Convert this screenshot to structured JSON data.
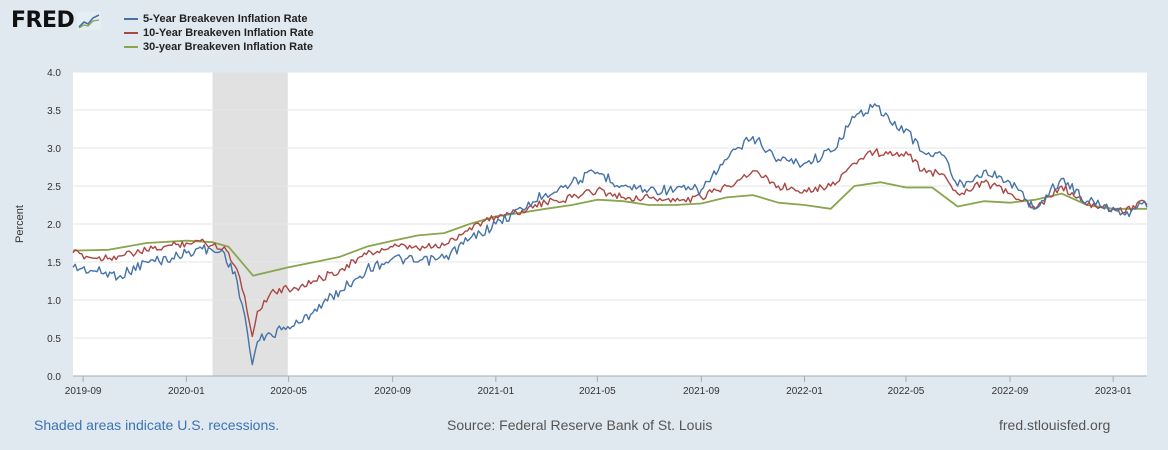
{
  "header": {
    "logo_text": "FRED"
  },
  "footer": {
    "recession_note": "Shaded areas indicate U.S. recessions.",
    "source": "Source: Federal Reserve Bank of St. Louis",
    "site": "fred.stlouisfed.org"
  },
  "chart_data": {
    "type": "line",
    "title": "",
    "xlabel": "",
    "ylabel": "Percent",
    "xlim": [
      "2019-08-20",
      "2023-02-10"
    ],
    "ylim": [
      0,
      4.0
    ],
    "yticks": [
      "0.0",
      "0.5",
      "1.0",
      "1.5",
      "2.0",
      "2.5",
      "3.0",
      "3.5",
      "4.0"
    ],
    "xticks": [
      "2019-09",
      "2020-01",
      "2020-05",
      "2020-09",
      "2021-01",
      "2021-05",
      "2021-09",
      "2022-01",
      "2022-05",
      "2022-09",
      "2023-01"
    ],
    "grid": true,
    "legend_position": "top-left",
    "recession_shading": [
      "2020-02-01",
      "2020-04-30"
    ],
    "series": [
      {
        "name": "5-Year Breakeven Inflation Rate",
        "color": "#4572a7",
        "points": [
          [
            "2019-08-20",
            1.43
          ],
          [
            "2019-09-15",
            1.38
          ],
          [
            "2019-10-15",
            1.32
          ],
          [
            "2019-11-15",
            1.5
          ],
          [
            "2019-12-15",
            1.55
          ],
          [
            "2020-01-01",
            1.62
          ],
          [
            "2020-01-15",
            1.68
          ],
          [
            "2020-02-01",
            1.65
          ],
          [
            "2020-02-15",
            1.62
          ],
          [
            "2020-03-01",
            1.25
          ],
          [
            "2020-03-10",
            0.8
          ],
          [
            "2020-03-19",
            0.15
          ],
          [
            "2020-03-25",
            0.45
          ],
          [
            "2020-04-10",
            0.55
          ],
          [
            "2020-04-30",
            0.65
          ],
          [
            "2020-05-15",
            0.7
          ],
          [
            "2020-06-01",
            0.88
          ],
          [
            "2020-07-01",
            1.12
          ],
          [
            "2020-08-01",
            1.4
          ],
          [
            "2020-09-01",
            1.55
          ],
          [
            "2020-10-01",
            1.5
          ],
          [
            "2020-11-01",
            1.55
          ],
          [
            "2020-12-01",
            1.8
          ],
          [
            "2021-01-01",
            2.0
          ],
          [
            "2021-02-01",
            2.2
          ],
          [
            "2021-03-01",
            2.4
          ],
          [
            "2021-04-01",
            2.55
          ],
          [
            "2021-05-01",
            2.68
          ],
          [
            "2021-06-01",
            2.5
          ],
          [
            "2021-07-01",
            2.45
          ],
          [
            "2021-08-01",
            2.45
          ],
          [
            "2021-09-01",
            2.45
          ],
          [
            "2021-10-01",
            2.85
          ],
          [
            "2021-11-01",
            3.15
          ],
          [
            "2021-12-01",
            2.85
          ],
          [
            "2022-01-01",
            2.8
          ],
          [
            "2022-02-01",
            2.95
          ],
          [
            "2022-03-01",
            3.4
          ],
          [
            "2022-03-25",
            3.58
          ],
          [
            "2022-04-15",
            3.3
          ],
          [
            "2022-05-01",
            3.25
          ],
          [
            "2022-05-20",
            2.95
          ],
          [
            "2022-06-15",
            2.9
          ],
          [
            "2022-07-01",
            2.5
          ],
          [
            "2022-08-01",
            2.7
          ],
          [
            "2022-09-01",
            2.55
          ],
          [
            "2022-10-01",
            2.2
          ],
          [
            "2022-11-01",
            2.6
          ],
          [
            "2022-12-01",
            2.3
          ],
          [
            "2023-01-01",
            2.22
          ],
          [
            "2023-01-15",
            2.12
          ],
          [
            "2023-02-01",
            2.28
          ],
          [
            "2023-02-10",
            2.22
          ]
        ]
      },
      {
        "name": "10-Year Breakeven Inflation Rate",
        "color": "#aa4643",
        "points": [
          [
            "2019-08-20",
            1.62
          ],
          [
            "2019-09-15",
            1.55
          ],
          [
            "2019-10-15",
            1.58
          ],
          [
            "2019-11-15",
            1.65
          ],
          [
            "2019-12-15",
            1.72
          ],
          [
            "2020-01-01",
            1.75
          ],
          [
            "2020-01-15",
            1.78
          ],
          [
            "2020-02-01",
            1.72
          ],
          [
            "2020-02-15",
            1.7
          ],
          [
            "2020-03-01",
            1.4
          ],
          [
            "2020-03-10",
            1.05
          ],
          [
            "2020-03-19",
            0.52
          ],
          [
            "2020-03-25",
            0.85
          ],
          [
            "2020-04-10",
            1.1
          ],
          [
            "2020-04-30",
            1.15
          ],
          [
            "2020-05-15",
            1.18
          ],
          [
            "2020-06-01",
            1.25
          ],
          [
            "2020-07-01",
            1.4
          ],
          [
            "2020-08-01",
            1.6
          ],
          [
            "2020-09-01",
            1.7
          ],
          [
            "2020-10-01",
            1.68
          ],
          [
            "2020-11-01",
            1.72
          ],
          [
            "2020-12-01",
            1.95
          ],
          [
            "2021-01-01",
            2.1
          ],
          [
            "2021-02-01",
            2.18
          ],
          [
            "2021-03-01",
            2.28
          ],
          [
            "2021-04-01",
            2.35
          ],
          [
            "2021-05-01",
            2.45
          ],
          [
            "2021-06-01",
            2.35
          ],
          [
            "2021-07-01",
            2.35
          ],
          [
            "2021-08-01",
            2.3
          ],
          [
            "2021-09-01",
            2.35
          ],
          [
            "2021-10-01",
            2.5
          ],
          [
            "2021-11-01",
            2.7
          ],
          [
            "2021-12-01",
            2.5
          ],
          [
            "2022-01-01",
            2.45
          ],
          [
            "2022-02-01",
            2.5
          ],
          [
            "2022-03-01",
            2.8
          ],
          [
            "2022-03-25",
            2.95
          ],
          [
            "2022-04-15",
            2.9
          ],
          [
            "2022-05-01",
            2.95
          ],
          [
            "2022-05-20",
            2.7
          ],
          [
            "2022-06-15",
            2.65
          ],
          [
            "2022-07-01",
            2.4
          ],
          [
            "2022-08-01",
            2.55
          ],
          [
            "2022-09-01",
            2.4
          ],
          [
            "2022-10-01",
            2.2
          ],
          [
            "2022-11-01",
            2.5
          ],
          [
            "2022-12-01",
            2.25
          ],
          [
            "2023-01-01",
            2.2
          ],
          [
            "2023-01-15",
            2.15
          ],
          [
            "2023-02-01",
            2.3
          ],
          [
            "2023-02-10",
            2.25
          ]
        ]
      },
      {
        "name": "30-year Breakeven Inflation Rate",
        "color": "#89a54e",
        "points": [
          [
            "2019-08-20",
            1.65
          ],
          [
            "2019-10-01",
            1.66
          ],
          [
            "2019-11-15",
            1.75
          ],
          [
            "2020-01-01",
            1.78
          ],
          [
            "2020-02-01",
            1.76
          ],
          [
            "2020-02-20",
            1.7
          ],
          [
            "2020-03-20",
            1.32
          ],
          [
            "2020-05-01",
            1.43
          ],
          [
            "2020-06-01",
            1.5
          ],
          [
            "2020-07-01",
            1.57
          ],
          [
            "2020-08-01",
            1.7
          ],
          [
            "2020-09-01",
            1.78
          ],
          [
            "2020-10-01",
            1.85
          ],
          [
            "2020-11-01",
            1.88
          ],
          [
            "2020-12-01",
            2.0
          ],
          [
            "2021-01-01",
            2.1
          ],
          [
            "2021-02-01",
            2.15
          ],
          [
            "2021-03-01",
            2.2
          ],
          [
            "2021-04-01",
            2.25
          ],
          [
            "2021-05-01",
            2.32
          ],
          [
            "2021-06-01",
            2.3
          ],
          [
            "2021-07-01",
            2.25
          ],
          [
            "2021-08-01",
            2.25
          ],
          [
            "2021-09-01",
            2.27
          ],
          [
            "2021-10-01",
            2.35
          ],
          [
            "2021-11-01",
            2.38
          ],
          [
            "2021-12-01",
            2.28
          ],
          [
            "2022-01-01",
            2.25
          ],
          [
            "2022-02-01",
            2.2
          ],
          [
            "2022-03-01",
            2.5
          ],
          [
            "2022-04-01",
            2.55
          ],
          [
            "2022-05-01",
            2.48
          ],
          [
            "2022-06-01",
            2.48
          ],
          [
            "2022-07-01",
            2.23
          ],
          [
            "2022-08-01",
            2.3
          ],
          [
            "2022-09-01",
            2.28
          ],
          [
            "2022-10-01",
            2.32
          ],
          [
            "2022-11-01",
            2.4
          ],
          [
            "2022-12-01",
            2.25
          ],
          [
            "2023-01-01",
            2.2
          ],
          [
            "2023-02-10",
            2.2
          ]
        ]
      }
    ]
  }
}
